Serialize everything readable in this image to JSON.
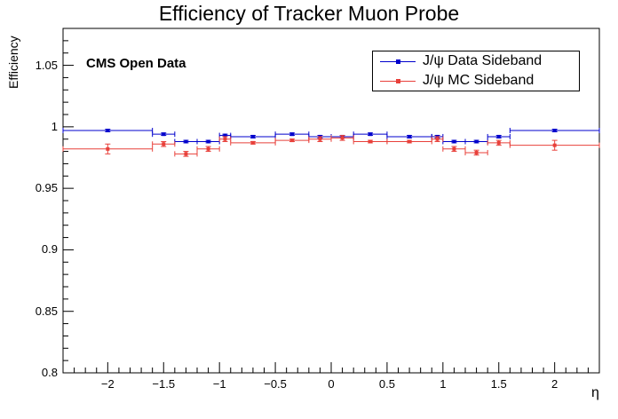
{
  "title": "Efficiency of Tracker Muon Probe",
  "ylabel": "Efficiency",
  "xlabel": "η",
  "annotation": "CMS Open Data",
  "legend": [
    {
      "label": "J/ψ Data Sideband",
      "color": "#0000cc"
    },
    {
      "label": "J/ψ MC Sideband",
      "color": "#e8403a"
    }
  ],
  "chart_data": {
    "type": "scatter",
    "title": "Efficiency of Tracker Muon Probe",
    "xlabel": "η",
    "ylabel": "Efficiency",
    "xlim": [
      -2.4,
      2.4
    ],
    "ylim": [
      0.8,
      1.08
    ],
    "yticks": [
      0.8,
      0.85,
      0.9,
      0.95,
      1,
      1.05
    ],
    "yticklabels": [
      "0.8",
      "0.85",
      "0.9",
      "0.95",
      "1",
      "1.05"
    ],
    "xticks": [
      -2,
      -1.5,
      -1,
      -0.5,
      0,
      0.5,
      1,
      1.5,
      2
    ],
    "xticklabels": [
      "−2",
      "−1.5",
      "−1",
      "−0.5",
      "0",
      "0.5",
      "1",
      "1.5",
      "2"
    ],
    "legend_position": "top-right",
    "grid": false,
    "bins": [
      [
        -2.4,
        -1.6
      ],
      [
        -1.6,
        -1.4
      ],
      [
        -1.4,
        -1.2
      ],
      [
        -1.2,
        -1.0
      ],
      [
        -1.0,
        -0.9
      ],
      [
        -0.9,
        -0.5
      ],
      [
        -0.5,
        -0.2
      ],
      [
        -0.2,
        0.0
      ],
      [
        0.0,
        0.2
      ],
      [
        0.2,
        0.5
      ],
      [
        0.5,
        0.9
      ],
      [
        0.9,
        1.0
      ],
      [
        1.0,
        1.2
      ],
      [
        1.2,
        1.4
      ],
      [
        1.4,
        1.6
      ],
      [
        1.6,
        2.4
      ]
    ],
    "series": [
      {
        "name": "J/ψ Data Sideband",
        "color": "#0000cc",
        "values": [
          0.997,
          0.994,
          0.988,
          0.988,
          0.993,
          0.992,
          0.994,
          0.992,
          0.992,
          0.994,
          0.992,
          0.992,
          0.988,
          0.988,
          0.992,
          0.997
        ],
        "errors": [
          0.001,
          0.001,
          0.001,
          0.001,
          0.001,
          0.001,
          0.001,
          0.001,
          0.001,
          0.001,
          0.001,
          0.001,
          0.001,
          0.001,
          0.001,
          0.001
        ]
      },
      {
        "name": "J/ψ MC Sideband",
        "color": "#e8403a",
        "values": [
          0.982,
          0.986,
          0.978,
          0.982,
          0.99,
          0.987,
          0.989,
          0.99,
          0.991,
          0.988,
          0.988,
          0.99,
          0.982,
          0.979,
          0.987,
          0.985
        ],
        "errors": [
          0.004,
          0.002,
          0.002,
          0.002,
          0.002,
          0.001,
          0.001,
          0.002,
          0.002,
          0.001,
          0.001,
          0.002,
          0.002,
          0.002,
          0.002,
          0.004
        ]
      }
    ]
  }
}
